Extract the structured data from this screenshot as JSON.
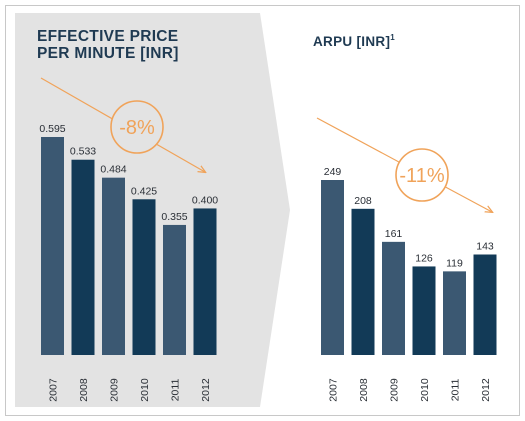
{
  "chart_data": [
    {
      "type": "bar",
      "title_line1": "EFFECTIVE PRICE",
      "title_line2": "PER MINUTE [INR]",
      "categories": [
        "2007",
        "2008",
        "2009",
        "2010",
        "2011",
        "2012"
      ],
      "values": [
        0.595,
        0.533,
        0.484,
        0.425,
        0.355,
        0.4
      ],
      "value_labels": [
        "0.595",
        "0.533",
        "0.484",
        "0.425",
        "0.355",
        "0.400"
      ],
      "annotation": "-8%",
      "ylim": [
        0,
        0.6
      ]
    },
    {
      "type": "bar",
      "title": "ARPU [INR]",
      "title_sup": "1",
      "categories": [
        "2007",
        "2008",
        "2009",
        "2010",
        "2011",
        "2012"
      ],
      "values": [
        249,
        208,
        161,
        126,
        119,
        143
      ],
      "value_labels": [
        "249",
        "208",
        "161",
        "126",
        "119",
        "143"
      ],
      "annotation": "-11%",
      "ylim": [
        0,
        250
      ]
    }
  ],
  "colors": {
    "panel_left": "#e3e3e3",
    "bar_alt": "#3b5872",
    "bar_dark": "#123a57",
    "accent": "#f0a35a",
    "title": "#1f3a52"
  }
}
